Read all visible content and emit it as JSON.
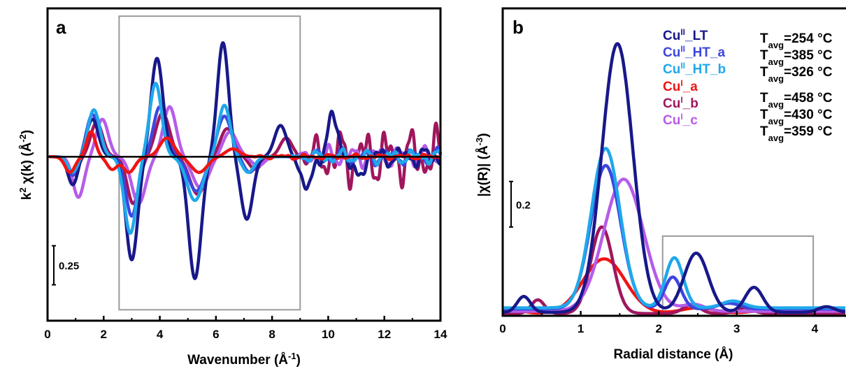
{
  "colors": {
    "CuII_LT": "#18188a",
    "CuII_HT_a": "#3d46e0",
    "CuII_HT_b": "#20a8ea",
    "CuI_a": "#f01414",
    "CuI_b": "#a0165e",
    "CuI_c": "#b65ce8",
    "baseline": "#000000",
    "box": "#9a9a9a"
  },
  "chart_data": [
    {
      "panel": "a",
      "type": "line",
      "xlabel": "Wavenumber",
      "xlabel_unit": "(Å",
      "xlabel_unit_sup": "-1",
      "xlabel_unit_end": ")",
      "ylabel_main": "k",
      "ylabel_sup": "2",
      "ylabel_rest": " χ(k) (Å",
      "ylabel_sup2": "-2",
      "ylabel_end": ")",
      "xlim": [
        0,
        14
      ],
      "xticks": [
        "0",
        "2",
        "4",
        "6",
        "8",
        "10",
        "12",
        "14"
      ],
      "ylim": [
        -1.05,
        0.95
      ],
      "scale_bar": {
        "value": 0.25,
        "label": "0.25"
      },
      "highlight_box": {
        "x": [
          2.55,
          9.0
        ],
        "y": [
          -0.98,
          0.9
        ]
      },
      "series": [
        {
          "key": "CuII_LT",
          "waves": [
            {
              "c": 1.6,
              "a": 0.24,
              "w": 0.3
            },
            {
              "c": 3.0,
              "a": -0.66,
              "w": 0.3
            },
            {
              "c": 3.9,
              "a": 0.63,
              "w": 0.3
            },
            {
              "c": 5.25,
              "a": -0.78,
              "w": 0.32
            },
            {
              "c": 6.25,
              "a": 0.73,
              "w": 0.28
            },
            {
              "c": 7.1,
              "a": -0.4,
              "w": 0.3
            },
            {
              "c": 8.3,
              "a": 0.2,
              "w": 0.3
            },
            {
              "c": 9.2,
              "a": -0.22,
              "w": 0.25
            },
            {
              "c": 10.2,
              "a": 0.26,
              "w": 0.25
            },
            {
              "c": 11.0,
              "a": -0.14,
              "w": 0.25
            },
            {
              "c": 0.9,
              "a": -0.18,
              "w": 0.25
            }
          ],
          "noise": 0.05,
          "noise_start": 8.5
        },
        {
          "key": "CuII_HT_a",
          "waves": [
            {
              "c": 1.6,
              "a": 0.27,
              "w": 0.3
            },
            {
              "c": 3.0,
              "a": -0.38,
              "w": 0.3
            },
            {
              "c": 4.0,
              "a": 0.32,
              "w": 0.32
            },
            {
              "c": 5.3,
              "a": -0.22,
              "w": 0.4
            },
            {
              "c": 6.3,
              "a": 0.26,
              "w": 0.35
            },
            {
              "c": 7.2,
              "a": -0.1,
              "w": 0.3
            },
            {
              "c": 0.9,
              "a": -0.12,
              "w": 0.25
            }
          ],
          "noise": 0.04,
          "noise_start": 8.5
        },
        {
          "key": "CuII_HT_b",
          "waves": [
            {
              "c": 1.65,
              "a": 0.3,
              "w": 0.3
            },
            {
              "c": 2.95,
              "a": -0.49,
              "w": 0.3
            },
            {
              "c": 3.85,
              "a": 0.47,
              "w": 0.3
            },
            {
              "c": 5.25,
              "a": -0.28,
              "w": 0.4
            },
            {
              "c": 6.3,
              "a": 0.33,
              "w": 0.3
            },
            {
              "c": 7.15,
              "a": -0.1,
              "w": 0.3
            },
            {
              "c": 0.9,
              "a": -0.1,
              "w": 0.25
            }
          ],
          "noise": 0.035,
          "noise_start": 8.5
        },
        {
          "key": "CuI_a",
          "waves": [
            {
              "c": 1.55,
              "a": 0.16,
              "w": 0.22
            },
            {
              "c": 0.8,
              "a": -0.1,
              "w": 0.25
            },
            {
              "c": 2.3,
              "a": -0.08,
              "w": 0.25
            },
            {
              "c": 2.9,
              "a": -0.1,
              "w": 0.3
            },
            {
              "c": 4.25,
              "a": 0.12,
              "w": 0.35
            },
            {
              "c": 5.4,
              "a": -0.1,
              "w": 0.4
            },
            {
              "c": 6.6,
              "a": 0.05,
              "w": 0.35
            }
          ],
          "noise": 0.012,
          "noise_start": 7.0
        },
        {
          "key": "CuI_b",
          "waves": [
            {
              "c": 1.75,
              "a": 0.22,
              "w": 0.3
            },
            {
              "c": 3.05,
              "a": -0.3,
              "w": 0.3
            },
            {
              "c": 4.1,
              "a": 0.28,
              "w": 0.35
            },
            {
              "c": 5.35,
              "a": -0.24,
              "w": 0.4
            },
            {
              "c": 6.4,
              "a": 0.18,
              "w": 0.35
            },
            {
              "c": 7.4,
              "a": -0.08,
              "w": 0.3
            },
            {
              "c": 8.5,
              "a": 0.12,
              "w": 0.3
            },
            {
              "c": 0.9,
              "a": -0.12,
              "w": 0.25
            }
          ],
          "noise": 0.14,
          "noise_start": 8.8
        },
        {
          "key": "CuI_c",
          "waves": [
            {
              "c": 1.1,
              "a": -0.26,
              "w": 0.28
            },
            {
              "c": 1.95,
              "a": 0.24,
              "w": 0.3
            },
            {
              "c": 3.25,
              "a": -0.3,
              "w": 0.35
            },
            {
              "c": 4.35,
              "a": 0.32,
              "w": 0.32
            },
            {
              "c": 5.45,
              "a": -0.2,
              "w": 0.4
            },
            {
              "c": 6.5,
              "a": 0.16,
              "w": 0.35
            },
            {
              "c": 7.5,
              "a": -0.06,
              "w": 0.3
            }
          ],
          "noise": 0.05,
          "noise_start": 8.5
        }
      ]
    },
    {
      "panel": "b",
      "type": "line",
      "xlabel": "Radial distance (Å)",
      "ylabel_main": "|χ(R)| (Å",
      "ylabel_sup": "-3",
      "ylabel_end": ")",
      "xlim": [
        0,
        4.4
      ],
      "xticks": [
        "0",
        "1",
        "2",
        "3",
        "4"
      ],
      "ylim": [
        0,
        1.35
      ],
      "scale_bar": {
        "value": 0.2,
        "label": "0.2"
      },
      "highlight_box": {
        "x": [
          2.05,
          3.98
        ],
        "y": [
          0.0,
          0.35
        ]
      },
      "series": [
        {
          "key": "CuII_LT",
          "base": 0.015,
          "peaks": [
            {
              "c": 0.27,
              "a": 0.07,
              "w": 0.12
            },
            {
              "c": 1.47,
              "a": 1.18,
              "w": 0.28
            },
            {
              "c": 2.48,
              "a": 0.26,
              "w": 0.22
            },
            {
              "c": 3.22,
              "a": 0.11,
              "w": 0.16
            },
            {
              "c": 4.15,
              "a": 0.025,
              "w": 0.15
            }
          ]
        },
        {
          "key": "CuII_HT_a",
          "base": 0.03,
          "peaks": [
            {
              "c": 1.32,
              "a": 0.63,
              "w": 0.27
            },
            {
              "c": 2.18,
              "a": 0.14,
              "w": 0.15
            },
            {
              "c": 2.9,
              "a": 0.025,
              "w": 0.2
            }
          ]
        },
        {
          "key": "CuII_HT_b",
          "base": 0.035,
          "peaks": [
            {
              "c": 1.32,
              "a": 0.7,
              "w": 0.26
            },
            {
              "c": 2.2,
              "a": 0.22,
              "w": 0.16
            },
            {
              "c": 2.95,
              "a": 0.03,
              "w": 0.2
            }
          ]
        },
        {
          "key": "CuI_a",
          "base": 0.01,
          "peaks": [
            {
              "c": 0.2,
              "a": 0.012,
              "w": 0.15
            },
            {
              "c": 1.3,
              "a": 0.24,
              "w": 0.38
            },
            {
              "c": 2.5,
              "a": 0.025,
              "w": 0.3
            },
            {
              "c": 3.4,
              "a": 0.015,
              "w": 0.3
            }
          ]
        },
        {
          "key": "CuI_b",
          "base": 0.01,
          "peaks": [
            {
              "c": 0.45,
              "a": 0.06,
              "w": 0.12
            },
            {
              "c": 1.27,
              "a": 0.38,
              "w": 0.2
            },
            {
              "c": 2.42,
              "a": 0.04,
              "w": 0.15
            },
            {
              "c": 3.1,
              "a": 0.025,
              "w": 0.15
            }
          ]
        },
        {
          "key": "CuI_c",
          "base": 0.02,
          "peaks": [
            {
              "c": 1.55,
              "a": 0.58,
              "w": 0.36
            },
            {
              "c": 2.45,
              "a": 0.03,
              "w": 0.2
            }
          ]
        }
      ],
      "legend": [
        {
          "key": "CuII_LT",
          "base": "Cu",
          "sup": "II",
          "suffix": "_LT",
          "t_label": "T",
          "t_sub": "avg",
          "t_value": "=254 °C"
        },
        {
          "key": "CuII_HT_a",
          "base": "Cu",
          "sup": "II",
          "suffix": "_HT_a",
          "t_label": "T",
          "t_sub": "avg",
          "t_value": "=385 °C"
        },
        {
          "key": "CuII_HT_b",
          "base": "Cu",
          "sup": "II",
          "suffix": "_HT_b",
          "t_label": "T",
          "t_sub": "avg",
          "t_value": "=326 °C"
        },
        {
          "key": "CuI_a",
          "base": "Cu",
          "sup": "I",
          "suffix": "_a",
          "t_label": "T",
          "t_sub": "avg",
          "t_value": "=458 °C"
        },
        {
          "key": "CuI_b",
          "base": "Cu",
          "sup": "I",
          "suffix": "_b",
          "t_label": "T",
          "t_sub": "avg",
          "t_value": "=430 °C"
        },
        {
          "key": "CuI_c",
          "base": "Cu",
          "sup": "I",
          "suffix": "_c",
          "t_label": "T",
          "t_sub": "avg",
          "t_value": "=359 °C"
        }
      ]
    }
  ]
}
